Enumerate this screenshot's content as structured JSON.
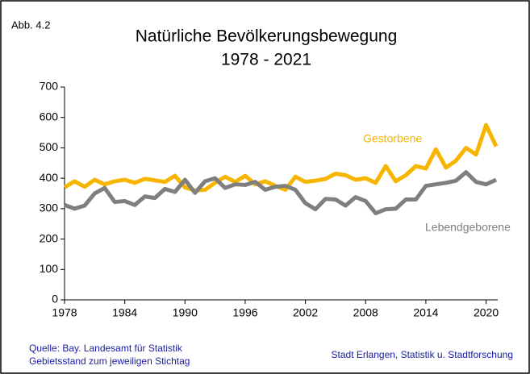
{
  "figure_label": "Abb. 4.2",
  "source": [
    "Quelle: Bay. Landesamt für Statistik",
    "Gebietsstand zum jeweiligen Stichtag"
  ],
  "publisher": "Stadt Erlangen, Statistik u. Stadtforschung",
  "chart_data": {
    "type": "line",
    "title": "Natürliche Bevölkerungsbewegung",
    "subtitle": "1978 - 2021",
    "x": [
      1978,
      1979,
      1980,
      1981,
      1982,
      1983,
      1984,
      1985,
      1986,
      1987,
      1988,
      1989,
      1990,
      1991,
      1992,
      1993,
      1994,
      1995,
      1996,
      1997,
      1998,
      1999,
      2000,
      2001,
      2002,
      2003,
      2004,
      2005,
      2006,
      2007,
      2008,
      2009,
      2010,
      2011,
      2012,
      2013,
      2014,
      2015,
      2016,
      2017,
      2018,
      2019,
      2020,
      2021
    ],
    "series": [
      {
        "name": "Gestorbene",
        "color": "#f7b500",
        "values": [
          370,
          390,
          372,
          395,
          380,
          390,
          395,
          385,
          398,
          393,
          388,
          408,
          370,
          360,
          362,
          385,
          405,
          388,
          408,
          380,
          390,
          375,
          362,
          405,
          388,
          392,
          398,
          415,
          410,
          395,
          400,
          385,
          440,
          390,
          410,
          440,
          432,
          495,
          435,
          458,
          500,
          478,
          575,
          505
        ]
      },
      {
        "name": "Lebendgeborene",
        "color": "#7f7f7f",
        "values": [
          312,
          300,
          310,
          350,
          368,
          322,
          325,
          312,
          340,
          335,
          365,
          355,
          395,
          352,
          390,
          400,
          368,
          380,
          378,
          388,
          362,
          372,
          375,
          362,
          318,
          298,
          332,
          330,
          310,
          338,
          325,
          285,
          298,
          300,
          330,
          330,
          375,
          380,
          385,
          392,
          420,
          388,
          380,
          395
        ]
      }
    ],
    "xlim": [
      1978,
      2021
    ],
    "xticks": [
      1978,
      1984,
      1990,
      1996,
      2002,
      2008,
      2014,
      2020
    ],
    "ylim": [
      0,
      700
    ],
    "yticks": [
      0,
      100,
      200,
      300,
      400,
      500,
      600,
      700
    ],
    "grid": false
  }
}
